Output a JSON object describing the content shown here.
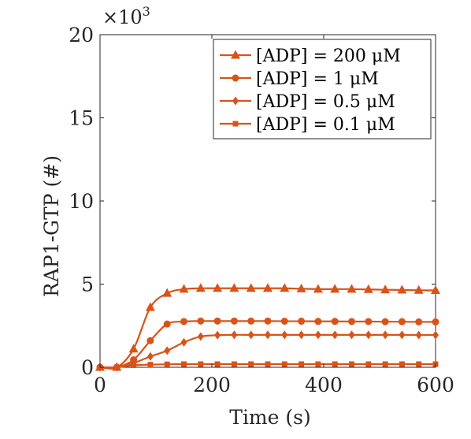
{
  "chart_data": {
    "type": "line",
    "title": "",
    "xlabel": "Time (s)",
    "ylabel": "RAP1-GTP (#)",
    "y_multiplier_label": "×10",
    "y_multiplier_exp": "3",
    "xlim": [
      0,
      600
    ],
    "ylim": [
      0,
      20
    ],
    "xticks": [
      0,
      200,
      400,
      600
    ],
    "yticks": [
      0,
      5,
      10,
      15,
      20
    ],
    "grid": false,
    "legend_position": "top-right",
    "line_color": "#D95319",
    "x": [
      0,
      30,
      60,
      90,
      120,
      150,
      180,
      210,
      240,
      270,
      300,
      330,
      360,
      390,
      420,
      450,
      480,
      510,
      540,
      570,
      600
    ],
    "series": [
      {
        "name": "[ADP] = 200 μM",
        "marker": "triangle",
        "values": [
          0,
          0,
          1.1,
          3.6,
          4.45,
          4.7,
          4.75,
          4.75,
          4.75,
          4.75,
          4.75,
          4.75,
          4.72,
          4.7,
          4.7,
          4.7,
          4.68,
          4.66,
          4.65,
          4.63,
          4.62
        ]
      },
      {
        "name": "[ADP] = 1 μM",
        "marker": "circle",
        "values": [
          0,
          0,
          0.45,
          1.6,
          2.6,
          2.75,
          2.78,
          2.78,
          2.78,
          2.78,
          2.78,
          2.77,
          2.77,
          2.76,
          2.76,
          2.75,
          2.75,
          2.74,
          2.74,
          2.73,
          2.73
        ]
      },
      {
        "name": "[ADP] = 0.5 μM",
        "marker": "diamond",
        "values": [
          0,
          0,
          0.25,
          0.65,
          1.0,
          1.5,
          1.85,
          1.93,
          1.95,
          1.95,
          1.95,
          1.95,
          1.95,
          1.95,
          1.95,
          1.95,
          1.95,
          1.95,
          1.95,
          1.94,
          1.94
        ]
      },
      {
        "name": "[ADP] = 0.1 μM",
        "marker": "square",
        "values": [
          0,
          0,
          0.12,
          0.16,
          0.18,
          0.19,
          0.19,
          0.19,
          0.19,
          0.19,
          0.19,
          0.19,
          0.19,
          0.19,
          0.19,
          0.19,
          0.19,
          0.19,
          0.19,
          0.19,
          0.19
        ]
      }
    ]
  }
}
